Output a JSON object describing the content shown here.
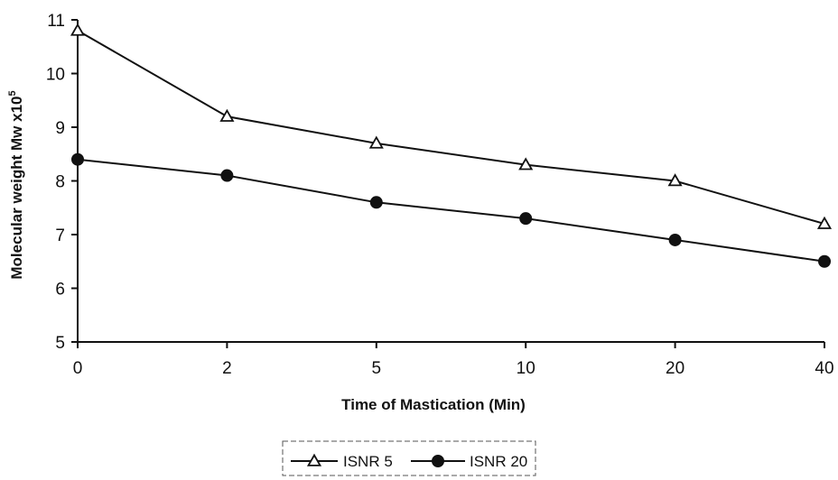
{
  "chart_data": {
    "type": "line",
    "x": [
      "0",
      "2",
      "5",
      "10",
      "20",
      "40"
    ],
    "xlabel": "Time of Mastication (Min)",
    "ylabel": "Molecular weight Mw x10",
    "ylabel_exponent": "5",
    "ylim": [
      5,
      11
    ],
    "yticks": [
      "5",
      "6",
      "7",
      "8",
      "9",
      "10",
      "11"
    ],
    "grid": false,
    "legend_position": "bottom-center",
    "series": [
      {
        "name": "ISNR 5",
        "marker": "triangle-open-icon",
        "values": [
          10.8,
          9.2,
          8.7,
          8.3,
          8.0,
          7.2
        ]
      },
      {
        "name": "ISNR 20",
        "marker": "circle-filled-icon",
        "values": [
          8.4,
          8.1,
          7.6,
          7.3,
          6.9,
          6.5
        ]
      }
    ]
  }
}
